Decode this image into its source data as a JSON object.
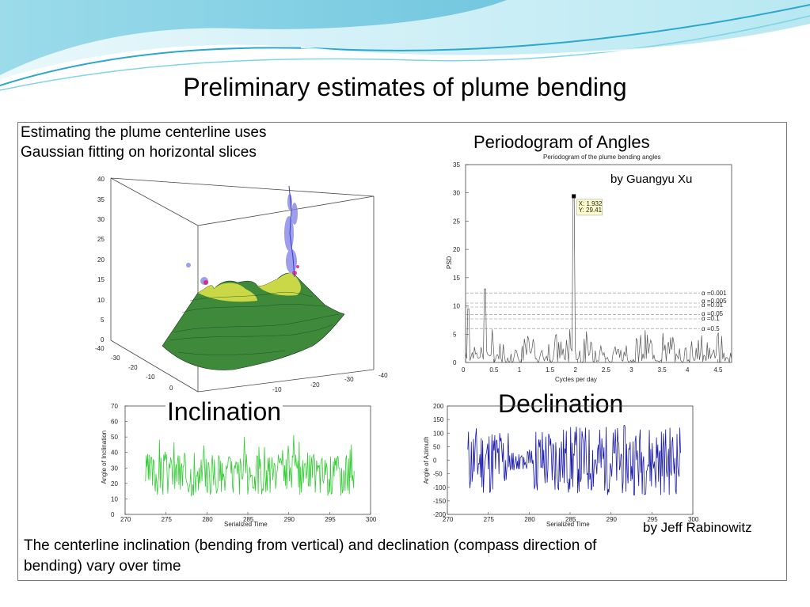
{
  "slide": {
    "title": "Preliminary estimates of plume bending",
    "intro_line1": "Estimating the plume centerline uses",
    "intro_line2": "Gaussian fitting on horizontal slices",
    "periodogram_heading": "Periodogram of Angles",
    "credit_xu": "by Guangyu Xu",
    "inclination_label": "Inclination",
    "declination_label": "Declination",
    "credit_rabinowitz": "by Jeff Rabinowitz",
    "caption_line1": "The centerline inclination (bending from vertical) and declination (compass direction of",
    "caption_line2": "bending) vary over time"
  },
  "plot3d": {
    "z_ticks": [
      "40",
      "35",
      "30",
      "25",
      "20",
      "15",
      "10",
      "5",
      "0"
    ],
    "x_ticks": [
      "-40",
      "-30",
      "-20",
      "-10",
      "0"
    ],
    "y_ticks": [
      "-10",
      "-20",
      "-30",
      "-40"
    ]
  },
  "periodogram": {
    "inner_title": "Periodogram of the plume bending angles",
    "ylabel": "PSD",
    "xlabel": "Cycles per day",
    "x_ticks": [
      "0",
      "0.5",
      "1",
      "1.5",
      "2",
      "2.5",
      "3",
      "3.5",
      "4",
      "4.5"
    ],
    "y_ticks": [
      "35",
      "30",
      "25",
      "20",
      "15",
      "10",
      "5",
      "0"
    ],
    "datatip_x": "X: 1.932",
    "datatip_y": "Y: 29.41",
    "significance_labels": [
      "α =0.001",
      "α =0.005",
      "α =0.01",
      "α =0.05",
      "α =0.1",
      "α =0.5"
    ],
    "color": "#555555"
  },
  "inclination_plot": {
    "ylabel": "Angle of Inclination",
    "xlabel": "Serialized Time",
    "x_ticks": [
      "270",
      "275",
      "280",
      "285",
      "290",
      "295",
      "300"
    ],
    "y_ticks": [
      "70",
      "60",
      "50",
      "40",
      "30",
      "20",
      "10",
      "0"
    ],
    "color": "#33cc33"
  },
  "declination_plot": {
    "ylabel": "Angle of Azimuth",
    "xlabel": "Serialized Time",
    "x_ticks": [
      "270",
      "275",
      "280",
      "285",
      "290",
      "295",
      "300"
    ],
    "y_ticks": [
      "200",
      "150",
      "100",
      "50",
      "0",
      "-50",
      "-100",
      "-150",
      "-200"
    ],
    "color": "#1a1aaa"
  },
  "colors": {
    "wave_light": "#cdeff6",
    "wave_mid": "#7fd3e6",
    "wave_dark": "#3fb3d3",
    "surface_green": "#3e8a3a",
    "surface_yellow": "#d9e04a",
    "plume_blue": "#7d7ee6"
  }
}
